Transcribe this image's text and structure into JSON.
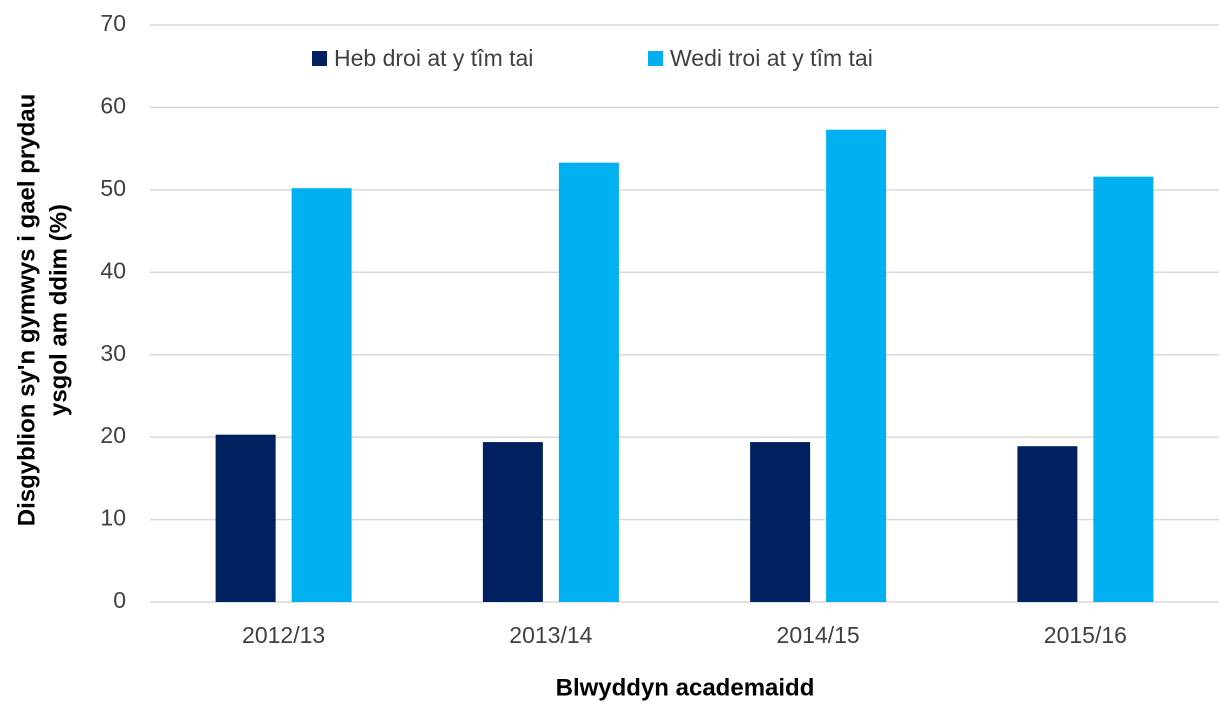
{
  "chart_data": {
    "type": "bar",
    "categories": [
      "2012/13",
      "2013/14",
      "2014/15",
      "2015/16"
    ],
    "series": [
      {
        "name": "Heb droi at y tîm tai",
        "color": "#002060",
        "values": [
          20.3,
          19.4,
          19.4,
          18.9
        ]
      },
      {
        "name": "Wedi troi at y tîm tai",
        "color": "#00b0f0",
        "values": [
          50.2,
          53.3,
          57.3,
          51.6
        ]
      }
    ],
    "xlabel": "Blwyddyn academaidd",
    "ylabel": [
      "Disgyblion sy'n gymwys i gael prydau",
      "ysgol am ddim (%)"
    ],
    "ylim": [
      0,
      70
    ],
    "yticks": [
      0,
      10,
      20,
      30,
      40,
      50,
      60,
      70
    ],
    "grid": true,
    "legend": "top"
  }
}
